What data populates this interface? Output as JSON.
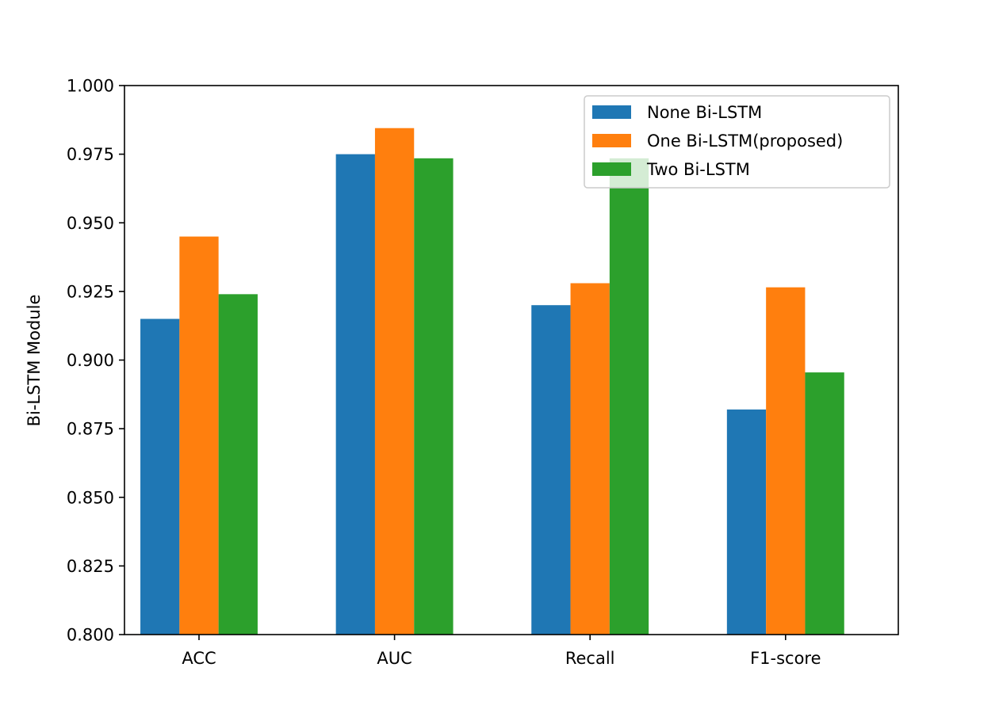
{
  "chart_data": {
    "type": "bar",
    "categories": [
      "ACC",
      "AUC",
      "Recall",
      "F1-score"
    ],
    "series": [
      {
        "name": "None Bi-LSTM",
        "color": "#1f77b4",
        "values": [
          0.915,
          0.975,
          0.92,
          0.882
        ]
      },
      {
        "name": "One Bi-LSTM(proposed)",
        "color": "#ff7f0e",
        "values": [
          0.945,
          0.9845,
          0.928,
          0.9265
        ]
      },
      {
        "name": "Two Bi-LSTM",
        "color": "#2ca02c",
        "values": [
          0.924,
          0.9735,
          0.9735,
          0.8955
        ]
      }
    ],
    "ylabel": "Bi-LSTM Module",
    "xlabel": "",
    "ylim": [
      0.8,
      1.0
    ],
    "yticks": [
      "0.800",
      "0.825",
      "0.850",
      "0.875",
      "0.900",
      "0.925",
      "0.950",
      "0.975",
      "1.000"
    ],
    "grid": false,
    "legend_position": "upper-right"
  }
}
